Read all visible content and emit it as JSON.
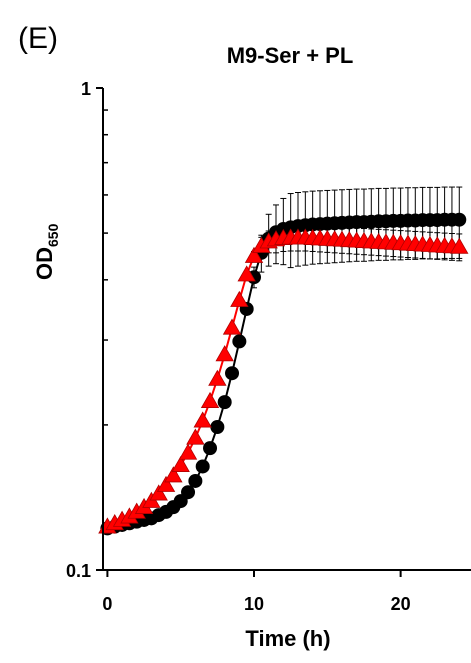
{
  "panel_label": "(E)",
  "chart_data": {
    "type": "scatter",
    "title": "M9-Ser + PL",
    "xlabel": "Time (h)",
    "ylabel_main": "OD",
    "ylabel_sub": "650",
    "y_scale": "log",
    "xlim": [
      -0.3,
      24.8
    ],
    "ylim": [
      0.1,
      1
    ],
    "x_ticks": [
      0,
      10,
      20
    ],
    "y_ticks": [
      0.1,
      1
    ],
    "y_tick_labels": [
      "0.1",
      "1"
    ],
    "grid": false,
    "error_bars": true,
    "series": [
      {
        "marker": "circle",
        "color": "#000000",
        "x": [
          0,
          0.5,
          1,
          1.5,
          2,
          2.5,
          3,
          3.5,
          4,
          4.5,
          5,
          5.5,
          6,
          6.5,
          7,
          7.5,
          8,
          8.5,
          9,
          9.5,
          10,
          10.5,
          11,
          11.5,
          12,
          12.5,
          13,
          13.5,
          14,
          14.5,
          15,
          15.5,
          16,
          16.5,
          17,
          17.5,
          18,
          18.5,
          19,
          19.5,
          20,
          20.5,
          21,
          21.5,
          22,
          22.5,
          23,
          23.5,
          24
        ],
        "y": [
          0.122,
          0.123,
          0.124,
          0.125,
          0.126,
          0.127,
          0.128,
          0.13,
          0.132,
          0.135,
          0.139,
          0.145,
          0.153,
          0.164,
          0.179,
          0.198,
          0.223,
          0.256,
          0.298,
          0.348,
          0.405,
          0.455,
          0.487,
          0.502,
          0.51,
          0.514,
          0.517,
          0.519,
          0.521,
          0.522,
          0.523,
          0.524,
          0.525,
          0.526,
          0.527,
          0.527,
          0.528,
          0.529,
          0.529,
          0.53,
          0.53,
          0.531,
          0.531,
          0.532,
          0.532,
          0.532,
          0.533,
          0.533,
          0.533
        ],
        "err": [
          0,
          0,
          0,
          0,
          0,
          0,
          0,
          0,
          0,
          0,
          0,
          0,
          0,
          0,
          0,
          0,
          0,
          0,
          0,
          0,
          0.02,
          0.04,
          0.06,
          0.07,
          0.08,
          0.09,
          0.09,
          0.09,
          0.09,
          0.09,
          0.09,
          0.09,
          0.09,
          0.09,
          0.09,
          0.09,
          0.09,
          0.09,
          0.09,
          0.09,
          0.09,
          0.09,
          0.09,
          0.09,
          0.09,
          0.09,
          0.09,
          0.09,
          0.09
        ]
      },
      {
        "marker": "triangle",
        "color": "#ff0000",
        "x": [
          0,
          0.5,
          1,
          1.5,
          2,
          2.5,
          3,
          3.5,
          4,
          4.5,
          5,
          5.5,
          6,
          6.5,
          7,
          7.5,
          8,
          8.5,
          9,
          9.5,
          10,
          10.5,
          11,
          11.5,
          12,
          12.5,
          13,
          13.5,
          14,
          14.5,
          15,
          15.5,
          16,
          16.5,
          17,
          17.5,
          18,
          18.5,
          19,
          19.5,
          20,
          20.5,
          21,
          21.5,
          22,
          22.5,
          23,
          23.5,
          24
        ],
        "y": [
          0.123,
          0.125,
          0.127,
          0.129,
          0.132,
          0.135,
          0.139,
          0.144,
          0.15,
          0.157,
          0.165,
          0.175,
          0.188,
          0.204,
          0.224,
          0.249,
          0.28,
          0.318,
          0.363,
          0.41,
          0.448,
          0.47,
          0.48,
          0.485,
          0.488,
          0.489,
          0.489,
          0.489,
          0.488,
          0.487,
          0.486,
          0.485,
          0.484,
          0.483,
          0.482,
          0.481,
          0.48,
          0.479,
          0.478,
          0.477,
          0.476,
          0.475,
          0.474,
          0.473,
          0.472,
          0.471,
          0.47,
          0.469,
          0.468
        ],
        "err": [
          0,
          0,
          0,
          0,
          0,
          0,
          0,
          0,
          0,
          0,
          0,
          0,
          0,
          0,
          0,
          0,
          0,
          0,
          0,
          0,
          0.01,
          0.02,
          0.025,
          0.03,
          0.03,
          0.03,
          0.03,
          0.03,
          0.03,
          0.03,
          0.03,
          0.03,
          0.03,
          0.03,
          0.03,
          0.03,
          0.03,
          0.03,
          0.03,
          0.03,
          0.03,
          0.03,
          0.03,
          0.03,
          0.03,
          0.03,
          0.03,
          0.03,
          0.03
        ]
      }
    ]
  }
}
